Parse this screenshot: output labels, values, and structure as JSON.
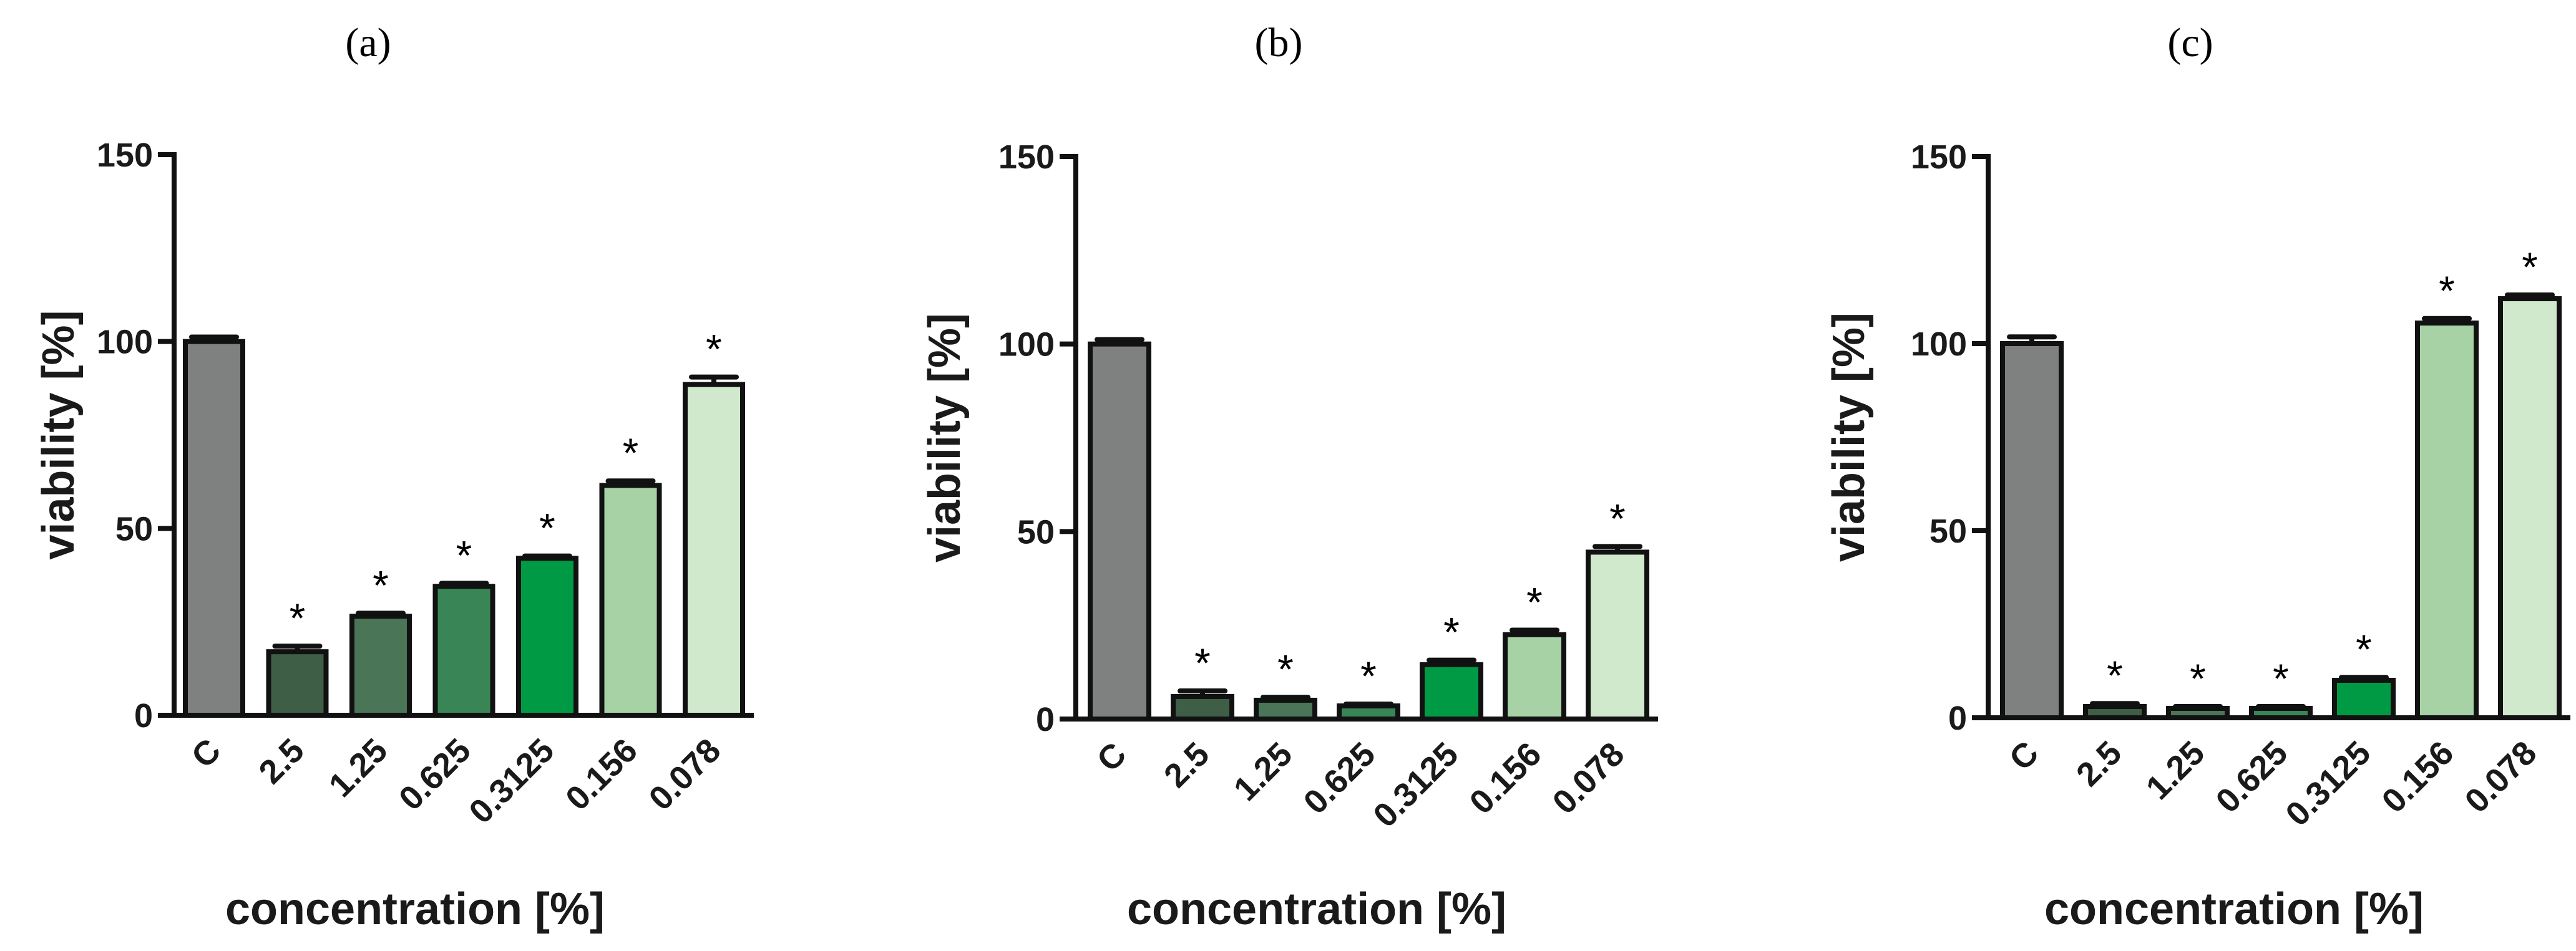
{
  "chart_data": [
    {
      "type": "bar",
      "panel_label": "(a)",
      "categories": [
        "C",
        "2.5",
        "1.25",
        "0.625",
        "0.3125",
        "0.156",
        "0.078"
      ],
      "values": [
        100,
        17,
        26.5,
        34.5,
        42,
        61.5,
        88.5
      ],
      "errors": [
        1.2,
        1.5,
        0.8,
        0.8,
        0.6,
        1.2,
        2.0
      ],
      "significance": [
        "",
        "*",
        "*",
        "*",
        "*",
        "*",
        "*"
      ],
      "colors": [
        "#7f8180",
        "#3f5e46",
        "#4a7556",
        "#3a8556",
        "#009a44",
        "#a6d2a6",
        "#d0e8cc"
      ],
      "xlabel": "concentration [%]",
      "ylabel": "viability [%]",
      "ylim": [
        0,
        150
      ],
      "yticks": [
        0,
        50,
        100,
        150
      ]
    },
    {
      "type": "bar",
      "panel_label": "(b)",
      "categories": [
        "C",
        "2.5",
        "1.25",
        "0.625",
        "0.3125",
        "0.156",
        "0.078"
      ],
      "values": [
        100,
        6,
        5,
        3.5,
        14.5,
        22.5,
        44.5
      ],
      "errors": [
        1.2,
        1.5,
        0.8,
        0.5,
        1.2,
        1.2,
        1.5
      ],
      "significance": [
        "",
        "*",
        "*",
        "*",
        "*",
        "*",
        "*"
      ],
      "colors": [
        "#7f8180",
        "#3f5e46",
        "#4a7556",
        "#3a8556",
        "#009a44",
        "#a6d2a6",
        "#d0e8cc"
      ],
      "xlabel": "concentration [%]",
      "ylabel": "viability [%]",
      "ylim": [
        0,
        150
      ],
      "yticks": [
        0,
        50,
        100,
        150
      ]
    },
    {
      "type": "bar",
      "panel_label": "(c)",
      "categories": [
        "C",
        "2.5",
        "1.25",
        "0.625",
        "0.3125",
        "0.156",
        "0.078"
      ],
      "values": [
        100,
        3,
        2.5,
        2.5,
        10,
        105.5,
        112
      ],
      "errors": [
        1.8,
        0.8,
        0.5,
        0.5,
        0.8,
        1.2,
        1.0
      ],
      "significance": [
        "",
        "*",
        "*",
        "*",
        "*",
        "*",
        "*"
      ],
      "colors": [
        "#7f8180",
        "#3f5e46",
        "#4a7556",
        "#3a8556",
        "#009a44",
        "#a6d2a6",
        "#d0e8cc"
      ],
      "xlabel": "concentration [%]",
      "ylabel": "viability [%]",
      "ylim": [
        0,
        150
      ],
      "yticks": [
        0,
        50,
        100,
        150
      ]
    }
  ]
}
